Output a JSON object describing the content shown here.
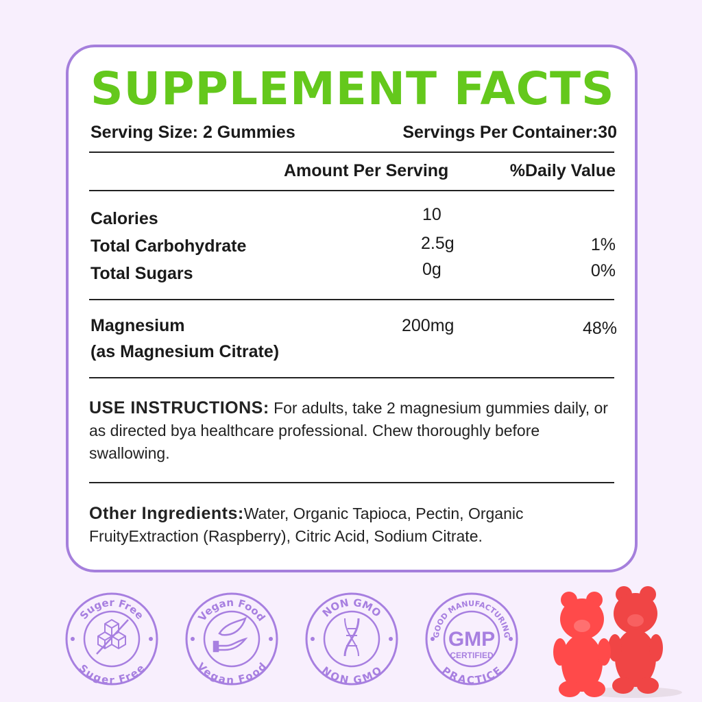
{
  "title": "SUPPLEMENT FACTS",
  "serving_size": "Serving Size: 2 Gummies",
  "servings_per_container": "Servings Per Container:30",
  "headers": {
    "amount": "Amount Per Serving",
    "dv": "%Daily Value"
  },
  "rows": [
    {
      "name": "Calories",
      "amount": "10",
      "dv": ""
    },
    {
      "name": "Total Carbohydrate",
      "amount": "2.5g",
      "dv": "1%"
    },
    {
      "name": "Total Sugars",
      "amount": "0g",
      "dv": "0%"
    }
  ],
  "magnesium": {
    "name": "Magnesium",
    "sub": "(as Magnesium Citrate)",
    "amount": "200mg",
    "dv": "48%"
  },
  "instructions": {
    "label": "USE INSTRUCTIONS:",
    "text": " For adults, take 2 magnesium gummies daily, or as directed bya healthcare professional. Chew thoroughly before swallowing."
  },
  "ingredients": {
    "label": "Other Ingredients:",
    "text": "Water, Organic Tapioca, Pectin, Organic FruityExtraction (Raspberry), Citric Acid, Sodium Citrate."
  },
  "badges": [
    {
      "top": "Suger Free",
      "bottom": "Suger Free",
      "icon": "sugar-cubes-icon"
    },
    {
      "top": "Vegan Food",
      "bottom": "Vegan Food",
      "icon": "leaf-hand-icon"
    },
    {
      "top": "NON GMO",
      "bottom": "NON GMO",
      "icon": "dna-icon"
    },
    {
      "top": "GOOD MANUFACTURING",
      "bottom": "PRACTICE",
      "center": "GMP",
      "center_sub": "CERTIFIED",
      "icon": "gmp-icon"
    }
  ],
  "colors": {
    "title": "#64c81c",
    "border": "#a57fdc",
    "badge": "#a77fe0",
    "gummy": "#f23a3a"
  }
}
